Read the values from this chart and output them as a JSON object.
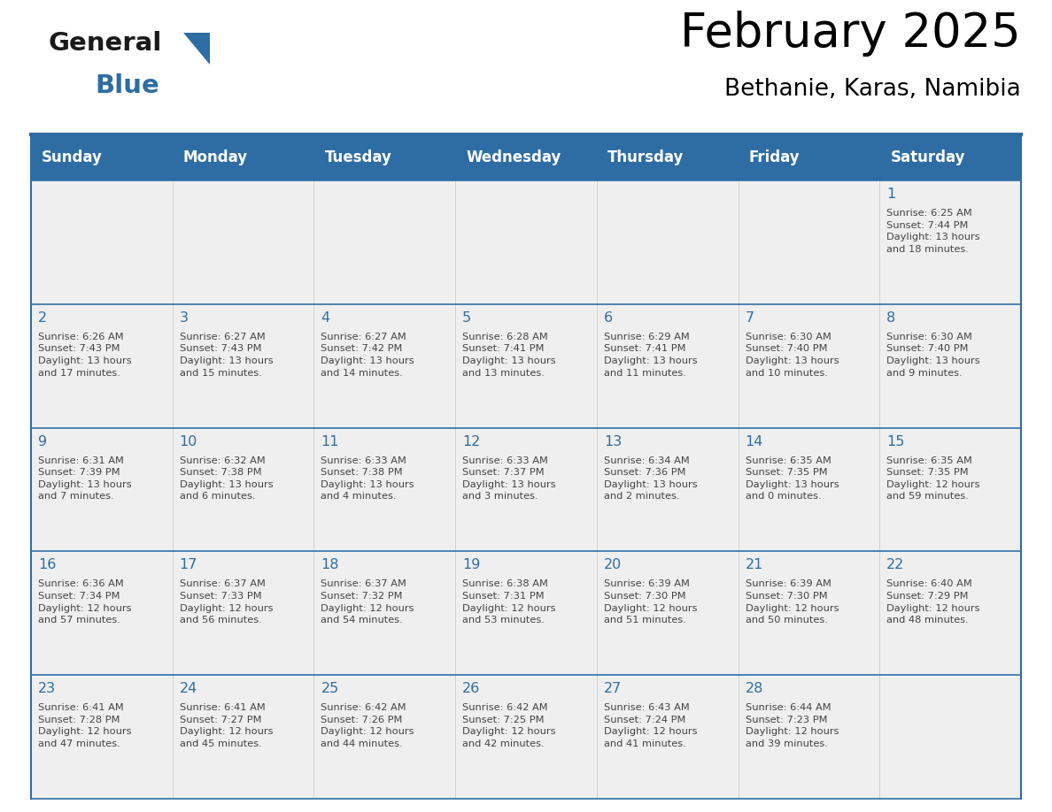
{
  "title": "February 2025",
  "subtitle": "Bethanie, Karas, Namibia",
  "days_of_week": [
    "Sunday",
    "Monday",
    "Tuesday",
    "Wednesday",
    "Thursday",
    "Friday",
    "Saturday"
  ],
  "header_bg": "#2E6DA4",
  "header_text": "#FFFFFF",
  "cell_bg": "#EFEFEF",
  "day_num_color": "#2E6DA4",
  "cell_text_color": "#444444",
  "line_color": "#2E6DA4",
  "logo_text_color": "#1a1a1a",
  "logo_blue_color": "#2E6DA4",
  "calendar_data": [
    [
      {
        "day": null,
        "info": ""
      },
      {
        "day": null,
        "info": ""
      },
      {
        "day": null,
        "info": ""
      },
      {
        "day": null,
        "info": ""
      },
      {
        "day": null,
        "info": ""
      },
      {
        "day": null,
        "info": ""
      },
      {
        "day": 1,
        "info": "Sunrise: 6:25 AM\nSunset: 7:44 PM\nDaylight: 13 hours\nand 18 minutes."
      }
    ],
    [
      {
        "day": 2,
        "info": "Sunrise: 6:26 AM\nSunset: 7:43 PM\nDaylight: 13 hours\nand 17 minutes."
      },
      {
        "day": 3,
        "info": "Sunrise: 6:27 AM\nSunset: 7:43 PM\nDaylight: 13 hours\nand 15 minutes."
      },
      {
        "day": 4,
        "info": "Sunrise: 6:27 AM\nSunset: 7:42 PM\nDaylight: 13 hours\nand 14 minutes."
      },
      {
        "day": 5,
        "info": "Sunrise: 6:28 AM\nSunset: 7:41 PM\nDaylight: 13 hours\nand 13 minutes."
      },
      {
        "day": 6,
        "info": "Sunrise: 6:29 AM\nSunset: 7:41 PM\nDaylight: 13 hours\nand 11 minutes."
      },
      {
        "day": 7,
        "info": "Sunrise: 6:30 AM\nSunset: 7:40 PM\nDaylight: 13 hours\nand 10 minutes."
      },
      {
        "day": 8,
        "info": "Sunrise: 6:30 AM\nSunset: 7:40 PM\nDaylight: 13 hours\nand 9 minutes."
      }
    ],
    [
      {
        "day": 9,
        "info": "Sunrise: 6:31 AM\nSunset: 7:39 PM\nDaylight: 13 hours\nand 7 minutes."
      },
      {
        "day": 10,
        "info": "Sunrise: 6:32 AM\nSunset: 7:38 PM\nDaylight: 13 hours\nand 6 minutes."
      },
      {
        "day": 11,
        "info": "Sunrise: 6:33 AM\nSunset: 7:38 PM\nDaylight: 13 hours\nand 4 minutes."
      },
      {
        "day": 12,
        "info": "Sunrise: 6:33 AM\nSunset: 7:37 PM\nDaylight: 13 hours\nand 3 minutes."
      },
      {
        "day": 13,
        "info": "Sunrise: 6:34 AM\nSunset: 7:36 PM\nDaylight: 13 hours\nand 2 minutes."
      },
      {
        "day": 14,
        "info": "Sunrise: 6:35 AM\nSunset: 7:35 PM\nDaylight: 13 hours\nand 0 minutes."
      },
      {
        "day": 15,
        "info": "Sunrise: 6:35 AM\nSunset: 7:35 PM\nDaylight: 12 hours\nand 59 minutes."
      }
    ],
    [
      {
        "day": 16,
        "info": "Sunrise: 6:36 AM\nSunset: 7:34 PM\nDaylight: 12 hours\nand 57 minutes."
      },
      {
        "day": 17,
        "info": "Sunrise: 6:37 AM\nSunset: 7:33 PM\nDaylight: 12 hours\nand 56 minutes."
      },
      {
        "day": 18,
        "info": "Sunrise: 6:37 AM\nSunset: 7:32 PM\nDaylight: 12 hours\nand 54 minutes."
      },
      {
        "day": 19,
        "info": "Sunrise: 6:38 AM\nSunset: 7:31 PM\nDaylight: 12 hours\nand 53 minutes."
      },
      {
        "day": 20,
        "info": "Sunrise: 6:39 AM\nSunset: 7:30 PM\nDaylight: 12 hours\nand 51 minutes."
      },
      {
        "day": 21,
        "info": "Sunrise: 6:39 AM\nSunset: 7:30 PM\nDaylight: 12 hours\nand 50 minutes."
      },
      {
        "day": 22,
        "info": "Sunrise: 6:40 AM\nSunset: 7:29 PM\nDaylight: 12 hours\nand 48 minutes."
      }
    ],
    [
      {
        "day": 23,
        "info": "Sunrise: 6:41 AM\nSunset: 7:28 PM\nDaylight: 12 hours\nand 47 minutes."
      },
      {
        "day": 24,
        "info": "Sunrise: 6:41 AM\nSunset: 7:27 PM\nDaylight: 12 hours\nand 45 minutes."
      },
      {
        "day": 25,
        "info": "Sunrise: 6:42 AM\nSunset: 7:26 PM\nDaylight: 12 hours\nand 44 minutes."
      },
      {
        "day": 26,
        "info": "Sunrise: 6:42 AM\nSunset: 7:25 PM\nDaylight: 12 hours\nand 42 minutes."
      },
      {
        "day": 27,
        "info": "Sunrise: 6:43 AM\nSunset: 7:24 PM\nDaylight: 12 hours\nand 41 minutes."
      },
      {
        "day": 28,
        "info": "Sunrise: 6:44 AM\nSunset: 7:23 PM\nDaylight: 12 hours\nand 39 minutes."
      },
      {
        "day": null,
        "info": ""
      }
    ]
  ],
  "figsize": [
    11.88,
    9.18
  ],
  "dpi": 100
}
